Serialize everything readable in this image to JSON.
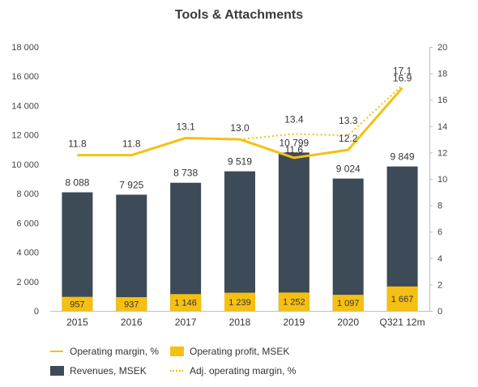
{
  "chart_data": {
    "type": "bar",
    "title": "Tools & Attachments",
    "categories": [
      "2015",
      "2016",
      "2017",
      "2018",
      "2019",
      "2020",
      "Q321 12m"
    ],
    "left_axis": {
      "min": 0,
      "max": 18000,
      "ticks": [
        "0",
        "2 000",
        "4 000",
        "6 000",
        "8 000",
        "10 000",
        "12 000",
        "14 000",
        "16 000",
        "18 000"
      ],
      "tick_values": [
        0,
        2000,
        4000,
        6000,
        8000,
        10000,
        12000,
        14000,
        16000,
        18000
      ]
    },
    "right_axis": {
      "min": 0,
      "max": 20,
      "ticks": [
        "0",
        "2",
        "4",
        "6",
        "8",
        "10",
        "12",
        "14",
        "16",
        "18",
        "20"
      ],
      "tick_values": [
        0,
        2,
        4,
        6,
        8,
        10,
        12,
        14,
        16,
        18,
        20
      ]
    },
    "series": [
      {
        "name": "Revenues, MSEK",
        "kind": "bar",
        "axis": "left",
        "color": "#3d4a57",
        "values": [
          8088,
          7925,
          8738,
          9519,
          10799,
          9024,
          9849
        ],
        "labels": [
          "8 088",
          "7 925",
          "8 738",
          "9 519",
          "10 799",
          "9 024",
          "9 849"
        ]
      },
      {
        "name": "Operating profit, MSEK",
        "kind": "bar",
        "axis": "left",
        "color": "#f6c012",
        "values": [
          957,
          937,
          1146,
          1239,
          1252,
          1097,
          1667
        ],
        "labels": [
          "957",
          "937",
          "1 146",
          "1 239",
          "1 252",
          "1 097",
          "1 667"
        ]
      },
      {
        "name": "Operating margin, %",
        "kind": "line",
        "axis": "right",
        "color": "#f6c012",
        "values": [
          11.8,
          11.8,
          13.1,
          13.0,
          11.6,
          12.2,
          16.9
        ],
        "labels": [
          "11.8",
          "11.8",
          "13.1",
          "13.0",
          "11.6",
          "12.2",
          "16.9"
        ]
      },
      {
        "name": "Adj. operating margin, %",
        "kind": "dotted-line",
        "axis": "right",
        "color": "#f6c012",
        "values": [
          null,
          null,
          null,
          13.0,
          13.4,
          13.3,
          17.1
        ],
        "labels": [
          "",
          "",
          "",
          "",
          "13.4",
          "13.3",
          "17.1"
        ]
      }
    ],
    "grid": false,
    "legend_position": "bottom"
  }
}
